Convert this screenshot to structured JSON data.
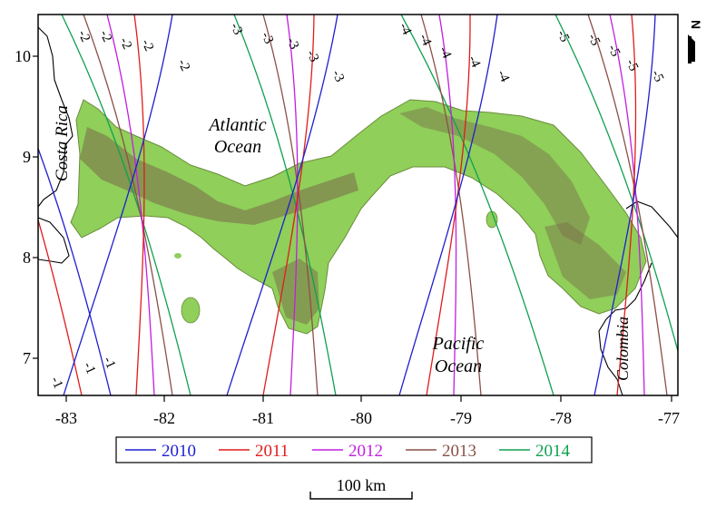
{
  "axes": {
    "x_ticks": [
      "-83",
      "-82",
      "-81",
      "-80",
      "-79",
      "-78",
      "-77"
    ],
    "y_ticks": [
      "10",
      "9",
      "8",
      "7"
    ]
  },
  "places": {
    "costa_rica": "Costa Rica",
    "atlantic_line1": "Atlantic",
    "atlantic_line2": "Ocean",
    "pacific_line1": "Pacific",
    "pacific_line2": "Ocean",
    "colombia": "Colombia"
  },
  "contour_labels": {
    "minus1": "-1",
    "minus2": "-2",
    "minus3": "-3",
    "minus4": "-4",
    "minus5": "-5"
  },
  "legend": [
    {
      "label": "2010",
      "color": "#1f1fd0"
    },
    {
      "label": "2011",
      "color": "#e01c1c"
    },
    {
      "label": "2012",
      "color": "#c21ee0"
    },
    {
      "label": "2013",
      "color": "#8b5048"
    },
    {
      "label": "2014",
      "color": "#10a050"
    }
  ],
  "north_arrow": "N",
  "scale_bar": "100 km",
  "colors": {
    "land": "#8fcf5a",
    "land_relief": "#7a6a4a",
    "frame": "#000000"
  }
}
